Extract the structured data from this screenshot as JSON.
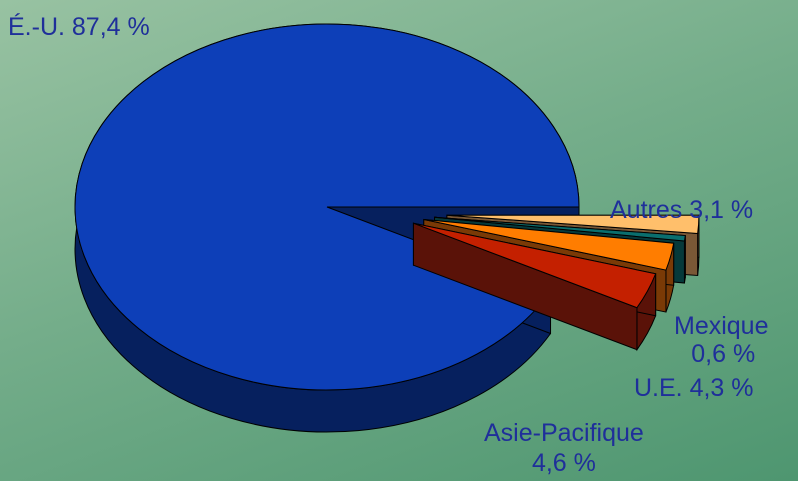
{
  "chart_data": {
    "type": "pie",
    "style": "3d-exploded",
    "slices": [
      {
        "name": "É.-U.",
        "value": 87.4,
        "label": "É.-U. 87,4 %",
        "color": "#0d3fb8",
        "side_color": "#06205e"
      },
      {
        "name": "Asie-Pacifique",
        "value": 4.6,
        "label_line1": "Asie-Pacifique",
        "label_line2": "4,6 %",
        "color": "#c42000",
        "side_color": "#5a1208"
      },
      {
        "name": "U.E.",
        "value": 4.3,
        "label": "U.E. 4,3 %",
        "color": "#ff7d00",
        "side_color": "#7a3a06"
      },
      {
        "name": "Mexique",
        "value": 0.6,
        "label_line1": "Mexique",
        "label_line2": "0,6 %",
        "color": "#0a6e6e",
        "side_color": "#06393a"
      },
      {
        "name": "Autres",
        "value": 3.1,
        "label": "Autres 3,1 %",
        "color": "#ffbf6b",
        "side_color": "#7a5836"
      }
    ],
    "label_color": "#1f2f9a"
  }
}
